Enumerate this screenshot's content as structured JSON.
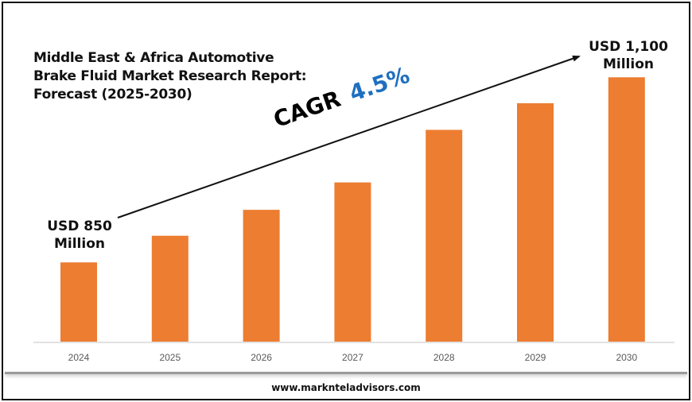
{
  "chart_data": {
    "type": "bar",
    "title": "Middle East & Africa Automotive Brake Fluid Market Research Report: Forecast (2025-2030)",
    "categories": [
      "2024",
      "2025",
      "2026",
      "2027",
      "2028",
      "2029",
      "2030"
    ],
    "values": [
      850,
      886,
      921,
      958,
      1029,
      1065,
      1100
    ],
    "unit": "USD Million",
    "bar_color": "#ed7d31",
    "annotations": {
      "start": "USD 850 Million",
      "end": "USD 1,100 Million",
      "cagr_label": "CAGR",
      "cagr_value": "4.5%"
    },
    "xlabel": "",
    "ylabel": "",
    "grid": false,
    "legend": "none"
  },
  "labels": {
    "start_line1": "USD 850",
    "start_line2": "Million",
    "end_line1": "USD 1,100",
    "end_line2": "Million"
  },
  "footer": "www.marknteladvisors.com"
}
